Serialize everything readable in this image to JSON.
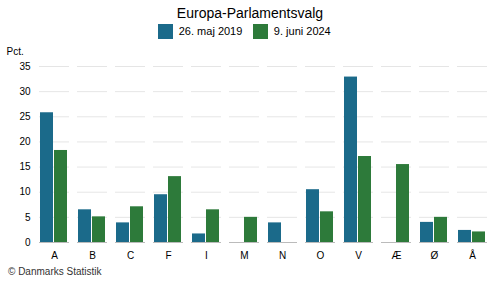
{
  "chart_data": {
    "type": "bar",
    "title": "Europa-Parlamentsvalg",
    "categories": [
      "A",
      "B",
      "C",
      "F",
      "I",
      "M",
      "N",
      "O",
      "V",
      "Æ",
      "Ø",
      "Å"
    ],
    "series": [
      {
        "name": "26. maj 2019",
        "color": "#1b6a8a",
        "values": [
          25.8,
          6.5,
          3.9,
          9.5,
          1.7,
          0,
          3.9,
          10.5,
          32.9,
          0,
          4.0,
          2.4
        ]
      },
      {
        "name": "9. juni 2024",
        "color": "#2d7a3a",
        "values": [
          18.3,
          5.1,
          7.1,
          13.1,
          6.5,
          5.0,
          0,
          6.1,
          17.1,
          15.5,
          5.0,
          2.1
        ]
      }
    ],
    "ylabel": "Pct.",
    "ylim": [
      0,
      35
    ],
    "yticks": [
      0,
      5,
      10,
      15,
      20,
      25,
      30,
      35
    ],
    "grid": true,
    "legend": "top",
    "caption": "© Danmarks Statistik"
  }
}
